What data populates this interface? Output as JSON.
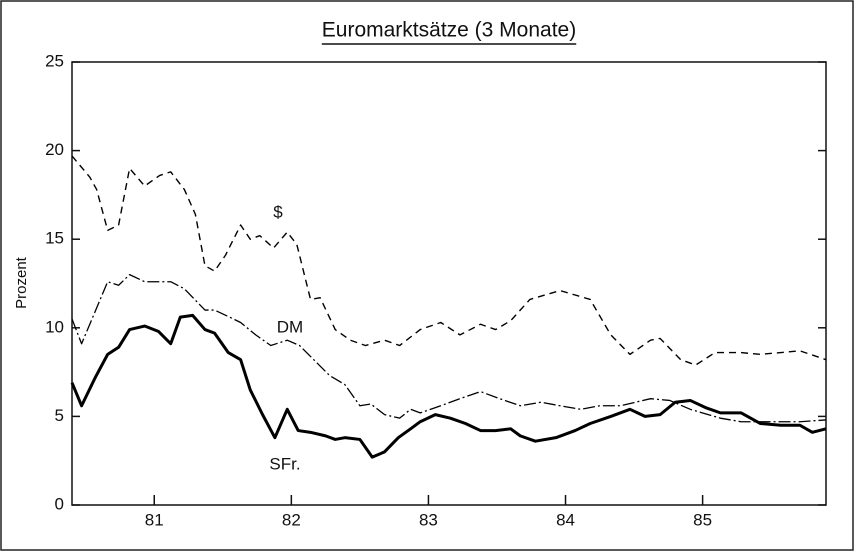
{
  "chart_data": {
    "type": "line",
    "title": "Euromarktsätze (3 Monate)",
    "ylabel": "Prozent",
    "xlim": [
      80.4,
      85.9
    ],
    "xticks": [
      81,
      82,
      83,
      84,
      85
    ],
    "ylim": [
      0,
      25
    ],
    "yticks": [
      0,
      5,
      10,
      15,
      20,
      25
    ],
    "series": [
      {
        "name": "$",
        "color": "#000000",
        "linestyle": "dashed",
        "x": [
          80.4,
          80.53,
          80.58,
          80.66,
          80.74,
          80.82,
          80.93,
          81.04,
          81.12,
          81.22,
          81.3,
          81.37,
          81.44,
          81.52,
          81.63,
          81.7,
          81.77,
          81.87,
          81.97,
          82.04,
          82.14,
          82.21,
          82.32,
          82.43,
          82.54,
          82.68,
          82.79,
          82.94,
          83.09,
          83.23,
          83.38,
          83.49,
          83.6,
          83.74,
          83.96,
          84.18,
          84.33,
          84.47,
          84.62,
          84.69,
          84.84,
          84.95,
          85.09,
          85.28,
          85.42,
          85.71,
          85.9
        ],
        "values": [
          19.7,
          18.5,
          17.8,
          15.5,
          15.8,
          19,
          18,
          18.6,
          18.8,
          17.8,
          16.4,
          13.5,
          13.2,
          14.1,
          15.8,
          15,
          15.2,
          14.5,
          15.4,
          14.7,
          11.6,
          11.7,
          9.9,
          9.3,
          9,
          9.3,
          9,
          9.9,
          10.3,
          9.6,
          10.2,
          9.9,
          10.4,
          11.6,
          12.1,
          11.6,
          9.6,
          8.5,
          9.3,
          9.4,
          8.2,
          7.9,
          8.6,
          8.6,
          8.5,
          8.7,
          8.2
        ]
      },
      {
        "name": "DM",
        "color": "#000000",
        "linestyle": "dashdot",
        "x": [
          80.4,
          80.47,
          80.66,
          80.74,
          80.82,
          80.93,
          81.12,
          81.22,
          81.37,
          81.44,
          81.55,
          81.63,
          81.74,
          81.85,
          81.97,
          82.06,
          82.28,
          82.39,
          82.5,
          82.58,
          82.68,
          82.79,
          82.87,
          82.94,
          83.09,
          83.23,
          83.38,
          83.52,
          83.67,
          83.82,
          83.96,
          84.11,
          84.25,
          84.4,
          84.62,
          84.76,
          84.91,
          85.13,
          85.28,
          85.42,
          85.71,
          85.9
        ],
        "values": [
          10.5,
          9.1,
          12.6,
          12.4,
          13,
          12.6,
          12.6,
          12.2,
          11,
          11,
          10.6,
          10.3,
          9.6,
          9,
          9.3,
          9,
          7.3,
          6.8,
          5.6,
          5.7,
          5.1,
          4.9,
          5.4,
          5.2,
          5.6,
          6,
          6.4,
          6,
          5.6,
          5.8,
          5.6,
          5.4,
          5.6,
          5.6,
          6,
          5.9,
          5.4,
          4.9,
          4.7,
          4.7,
          4.7,
          4.8
        ]
      },
      {
        "name": "SFr.",
        "color": "#000000",
        "linestyle": "solid",
        "x": [
          80.4,
          80.47,
          80.57,
          80.66,
          80.74,
          80.82,
          80.93,
          81.03,
          81.12,
          81.19,
          81.28,
          81.37,
          81.44,
          81.54,
          81.63,
          81.7,
          81.79,
          81.88,
          81.97,
          82.05,
          82.14,
          82.25,
          82.32,
          82.39,
          82.5,
          82.59,
          82.68,
          82.78,
          82.87,
          82.94,
          83.05,
          83.16,
          83.27,
          83.38,
          83.49,
          83.6,
          83.67,
          83.78,
          83.93,
          84.07,
          84.18,
          84.33,
          84.47,
          84.58,
          84.69,
          84.8,
          84.91,
          85.02,
          85.13,
          85.28,
          85.42,
          85.57,
          85.71,
          85.8,
          85.9
        ],
        "values": [
          6.9,
          5.6,
          7.2,
          8.5,
          8.9,
          9.9,
          10.1,
          9.8,
          9.1,
          10.6,
          10.7,
          9.9,
          9.7,
          8.6,
          8.2,
          6.5,
          5.1,
          3.8,
          5.4,
          4.2,
          4.1,
          3.9,
          3.7,
          3.8,
          3.7,
          2.7,
          3,
          3.8,
          4.3,
          4.7,
          5.1,
          4.9,
          4.6,
          4.2,
          4.2,
          4.3,
          3.9,
          3.6,
          3.8,
          4.2,
          4.6,
          5,
          5.4,
          5,
          5.1,
          5.8,
          5.9,
          5.5,
          5.2,
          5.2,
          4.6,
          4.5,
          4.5,
          4.1,
          4.3
        ]
      }
    ]
  }
}
